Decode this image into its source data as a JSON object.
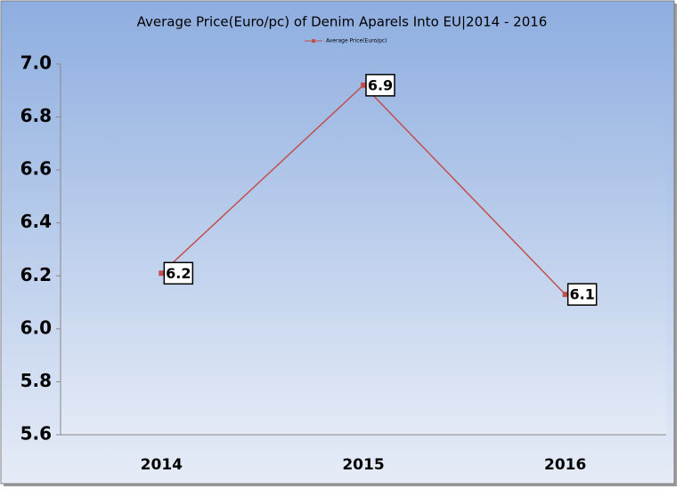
{
  "chart_data": {
    "type": "line",
    "title": "Average Price(Euro/pc) of Denim Aparels Into EU|2014 - 2016",
    "categories": [
      "2014",
      "2015",
      "2016"
    ],
    "series": [
      {
        "name": "Average Price(Euro/pc)",
        "color": "#c0504d",
        "values": [
          6.21,
          6.92,
          6.13
        ],
        "value_labels": [
          "6.2",
          "6.9",
          "6.1"
        ]
      }
    ],
    "ylim": [
      5.6,
      7.0
    ],
    "yticks": [
      5.6,
      5.8,
      {
        "value": 6,
        "label": "6.0"
      },
      6.2,
      6.4,
      6.6,
      6.8,
      {
        "value": 7,
        "label": "7.0"
      }
    ],
    "legend": "top"
  }
}
